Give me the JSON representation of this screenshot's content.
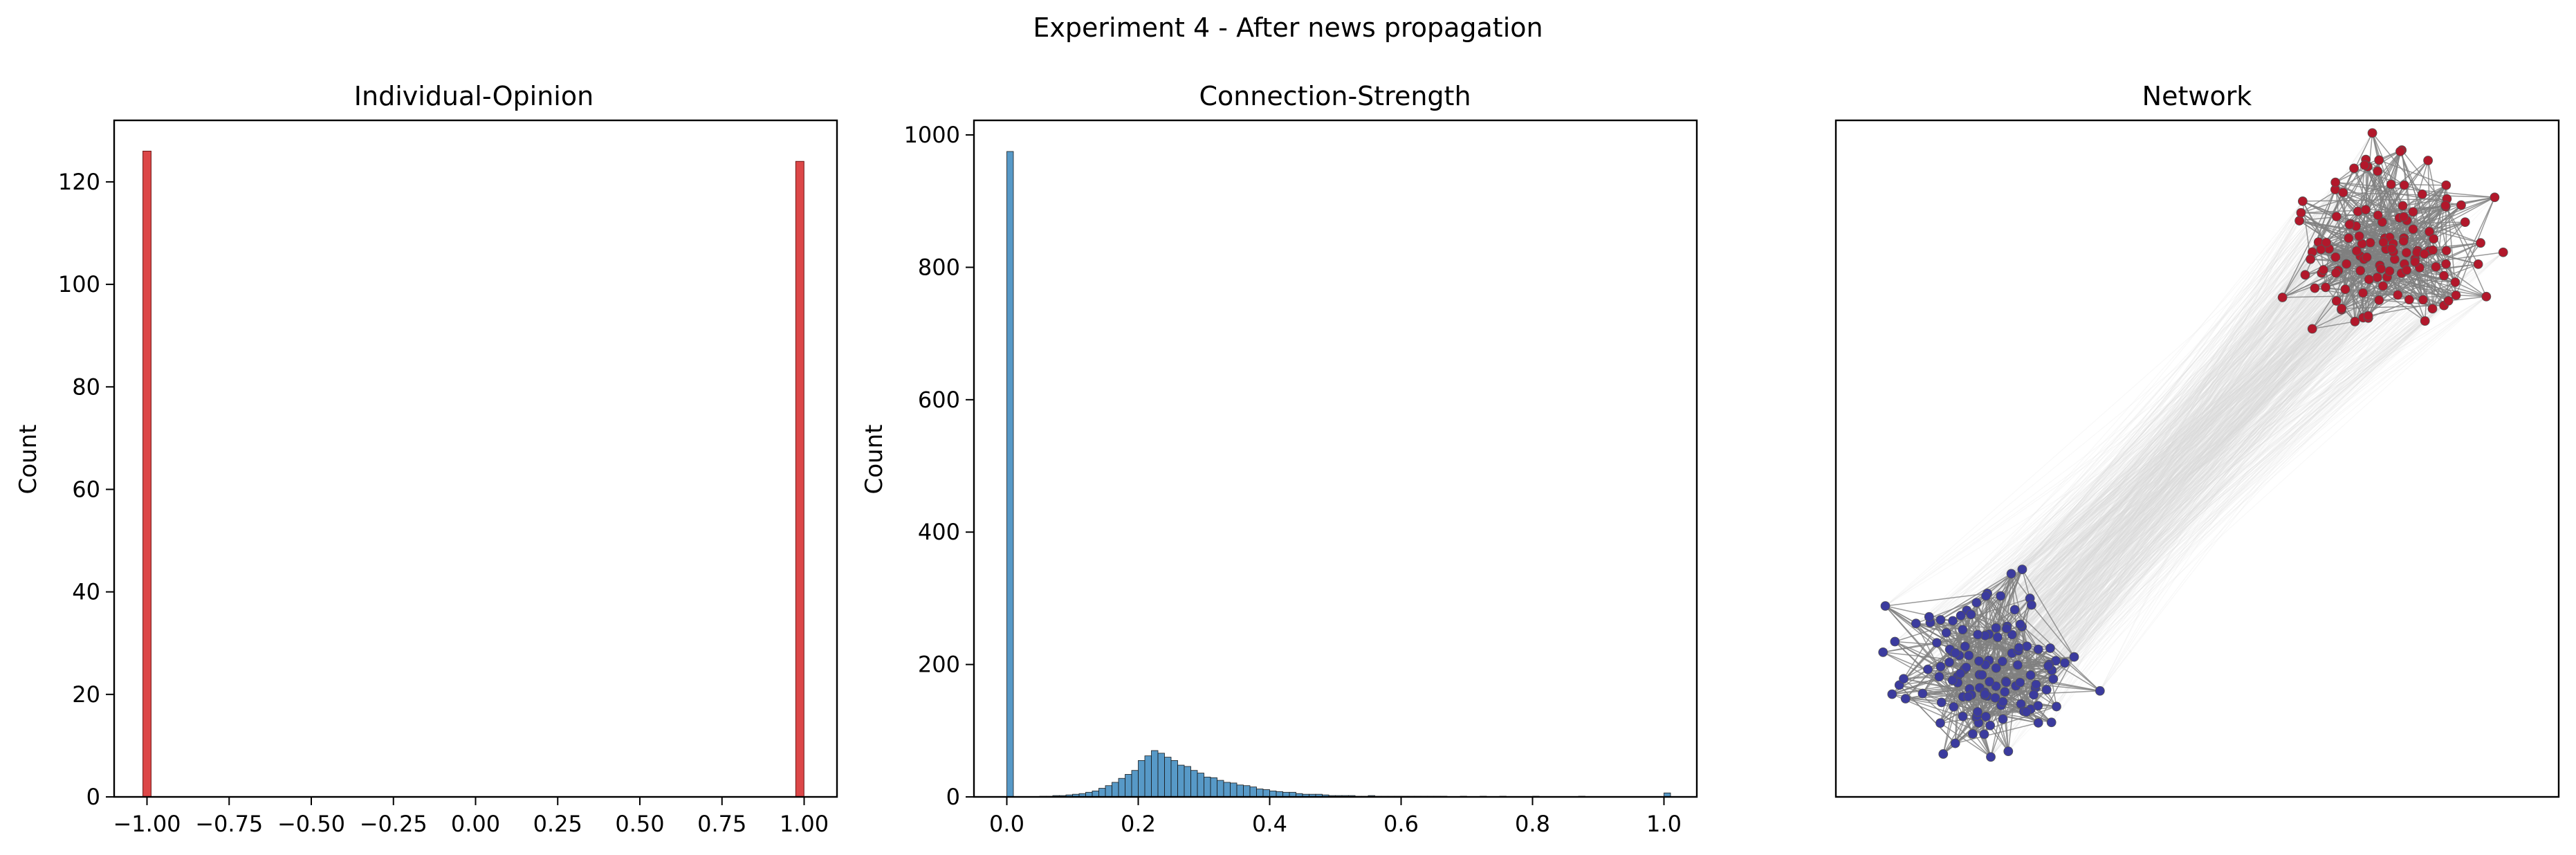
{
  "figure": {
    "suptitle": "Experiment 4 - After news propagation"
  },
  "chart_data": [
    {
      "type": "bar",
      "title": "Individual-Opinion",
      "xlabel": "",
      "ylabel": "Count",
      "xlim": [
        -1.1,
        1.1
      ],
      "ylim": [
        0,
        132
      ],
      "xticks": [
        -1.0,
        -0.75,
        -0.5,
        -0.25,
        0.0,
        0.25,
        0.5,
        0.75,
        1.0
      ],
      "xtick_labels": [
        "−1.00",
        "−0.75",
        "−0.50",
        "−0.25",
        "0.00",
        "0.25",
        "0.50",
        "0.75",
        "1.00"
      ],
      "yticks": [
        0,
        20,
        40,
        60,
        80,
        100,
        120
      ],
      "ytick_labels": [
        "0",
        "20",
        "40",
        "60",
        "80",
        "100",
        "120"
      ],
      "bin_width": 0.025,
      "bars": [
        {
          "x": -1.0,
          "count": 126
        },
        {
          "x": 0.987,
          "count": 124
        }
      ],
      "color": "#d62728",
      "grid": false
    },
    {
      "type": "bar",
      "title": "Connection-Strength",
      "xlabel": "",
      "ylabel": "Count",
      "xlim": [
        -0.05,
        1.05
      ],
      "ylim": [
        0,
        1022
      ],
      "xticks": [
        0.0,
        0.2,
        0.4,
        0.6,
        0.8,
        1.0
      ],
      "xtick_labels": [
        "0.0",
        "0.2",
        "0.4",
        "0.6",
        "0.8",
        "1.0"
      ],
      "yticks": [
        0,
        200,
        400,
        600,
        800,
        1000
      ],
      "ytick_labels": [
        "0",
        "200",
        "400",
        "600",
        "800",
        "1000"
      ],
      "bin_width": 0.01,
      "bin_start": 0.0,
      "counts": [
        975,
        0,
        0,
        0,
        0,
        1,
        1,
        2,
        2,
        3,
        4,
        5,
        7,
        9,
        13,
        17,
        22,
        28,
        34,
        40,
        55,
        62,
        70,
        66,
        60,
        55,
        48,
        46,
        40,
        36,
        30,
        29,
        25,
        22,
        21,
        18,
        17,
        15,
        12,
        11,
        9,
        8,
        7,
        7,
        5,
        4,
        4,
        4,
        3,
        2,
        2,
        2,
        2,
        1,
        1,
        2,
        1,
        1,
        1,
        1,
        1,
        1,
        1,
        1,
        1,
        1,
        1,
        0,
        0,
        1,
        0,
        0,
        1,
        0,
        0,
        1,
        0,
        0,
        0,
        0,
        1,
        0,
        0,
        0,
        0,
        0,
        0,
        1,
        0,
        0,
        0,
        0,
        0,
        0,
        0,
        0,
        0,
        0,
        0,
        0,
        6
      ],
      "color": "#1f77b4",
      "grid": false
    },
    {
      "type": "network",
      "title": "Network",
      "clusters": [
        {
          "opinion": 1.0,
          "nodes": 124,
          "color": "#b2182b"
        },
        {
          "opinion": -1.0,
          "nodes": 126,
          "color": "#3b3b9e"
        }
      ],
      "edge_color": "#808080",
      "inter_edge_color": "#d9d9d9"
    }
  ]
}
